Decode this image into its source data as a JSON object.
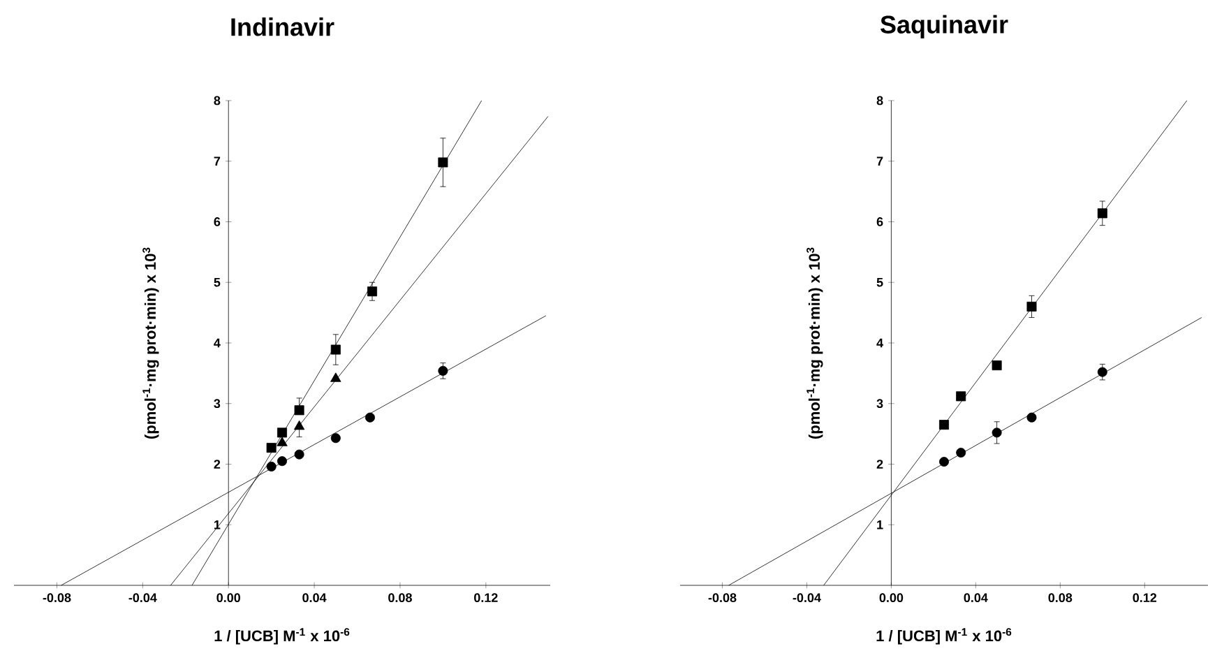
{
  "chart_data": [
    {
      "type": "scatter",
      "title": "Indinavir",
      "xlabel": "1 / [UCB] M$^{-1}$ x 10$^{-6}$",
      "ylabel": "(pmol$^{-1}$·mg prot·min) x 10$^{3}$",
      "xlim": [
        -0.1,
        0.15
      ],
      "ylim": [
        0,
        8
      ],
      "xticks": [
        -0.08,
        -0.04,
        {
          "value": 0,
          "label": "0.00"
        },
        0.04,
        0.08,
        0.12
      ],
      "yticks": [
        1,
        2,
        3,
        4,
        5,
        6,
        7,
        8
      ],
      "series": [
        {
          "type": "line",
          "color": "#000000",
          "x": [
            -0.078,
            0.148
          ],
          "values": [
            0,
            4.45
          ]
        },
        {
          "type": "line",
          "color": "#000000",
          "x": [
            -0.017,
            0.118
          ],
          "values": [
            0,
            8
          ]
        },
        {
          "type": "line",
          "color": "#000000",
          "x": [
            -0.027,
            0.149
          ],
          "values": [
            0,
            7.74
          ]
        },
        {
          "marker": "circle",
          "color": "#000000",
          "x": [
            0.02,
            0.025,
            0.033,
            0.05,
            0.066,
            0.1
          ],
          "values": [
            1.96,
            2.05,
            2.16,
            2.43,
            2.77,
            3.54
          ],
          "errors": [
            null,
            null,
            null,
            null,
            null,
            0.13
          ]
        },
        {
          "marker": "square",
          "color": "#000000",
          "x": [
            0.02,
            0.025,
            0.033,
            0.05,
            0.067,
            0.1
          ],
          "values": [
            2.27,
            2.52,
            2.89,
            3.89,
            4.85,
            6.98
          ],
          "errors": [
            null,
            null,
            [
              2.89,
              3.09
            ],
            0.25,
            0.15,
            0.4
          ]
        },
        {
          "marker": "triangle",
          "color": "#000000",
          "x": [
            0.025,
            0.033,
            0.05
          ],
          "values": [
            2.35,
            2.62,
            3.41
          ],
          "errors": [
            null,
            [
              2.45,
              2.62
            ],
            null
          ]
        }
      ]
    },
    {
      "type": "scatter",
      "title": "Saquinavir",
      "xlabel": "1 / [UCB] M$^{-1}$ x 10$^{-6}$",
      "ylabel": "(pmol$^{-1}$·mg prot·min) x 10$^{3}$",
      "xlim": [
        -0.1,
        0.15
      ],
      "ylim": [
        0,
        8
      ],
      "xticks": [
        -0.08,
        -0.04,
        {
          "value": 0,
          "label": "0.00"
        },
        0.04,
        0.08,
        0.12
      ],
      "yticks": [
        1,
        2,
        3,
        4,
        5,
        6,
        7,
        8
      ],
      "series": [
        {
          "type": "line",
          "color": "#000000",
          "x": [
            -0.077,
            0.147
          ],
          "values": [
            0,
            4.42
          ]
        },
        {
          "type": "line",
          "color": "#000000",
          "x": [
            -0.032,
            0.14
          ],
          "values": [
            0,
            8
          ]
        },
        {
          "marker": "circle",
          "color": "#000000",
          "x": [
            0.025,
            0.033,
            0.05,
            0.0665,
            0.1
          ],
          "values": [
            2.04,
            2.19,
            2.52,
            2.77,
            3.52
          ],
          "errors": [
            null,
            null,
            0.18,
            null,
            0.13
          ]
        },
        {
          "marker": "square",
          "color": "#000000",
          "x": [
            0.025,
            0.033,
            0.05,
            0.0665,
            0.1
          ],
          "values": [
            2.65,
            3.12,
            3.63,
            4.6,
            6.14
          ],
          "errors": [
            null,
            null,
            null,
            0.18,
            0.2
          ]
        }
      ]
    }
  ]
}
